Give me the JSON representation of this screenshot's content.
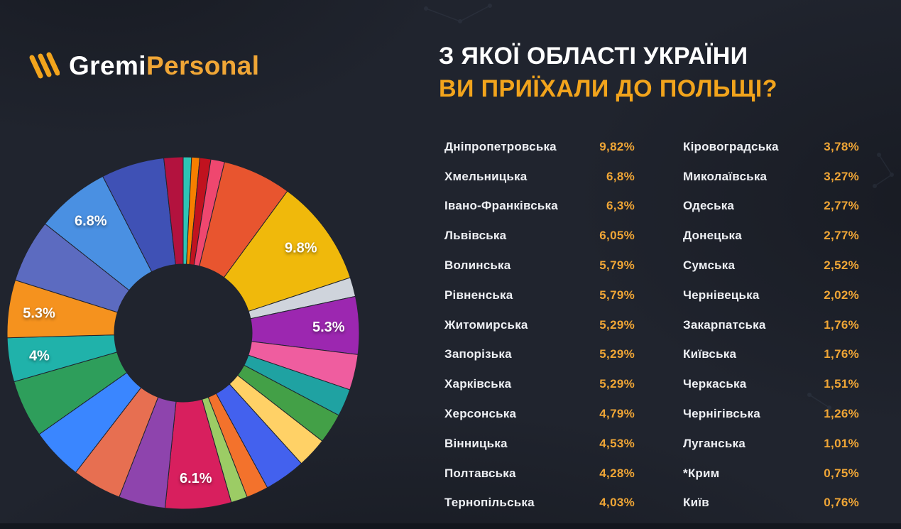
{
  "page": {
    "colors": {
      "background": "#20242e",
      "accent": "#F0A636",
      "accent_bright": "#F2A41C",
      "text": "#FFFFFF"
    }
  },
  "logo": {
    "text_white": "Gremi",
    "text_accent": "Personal"
  },
  "title": {
    "line1": "З ЯКОЇ ОБЛАСТІ УКРАЇНИ",
    "line2": "ВИ ПРИЇХАЛИ ДО ПОЛЬЩІ?"
  },
  "chart_data": {
    "type": "pie",
    "donut": true,
    "title": "З якої області України ви приїхали до Польщі?",
    "unit": "%",
    "legend_position": "right",
    "regions": [
      {
        "name": "Дніпропетровська",
        "value": 9.82,
        "display": "9,82%",
        "color": "#f0b90b",
        "chart_label": "9.8%"
      },
      {
        "name": "Хмельницька",
        "value": 6.8,
        "display": "6,8%",
        "color": "#4a90e2",
        "chart_label": "6.8%"
      },
      {
        "name": "Івано-Франківська",
        "value": 6.3,
        "display": "6,3%",
        "color": "#e8552f"
      },
      {
        "name": "Львівська",
        "value": 6.05,
        "display": "6,05%",
        "color": "#d81f5e",
        "chart_label": "6.1%"
      },
      {
        "name": "Волинська",
        "value": 5.79,
        "display": "5,79%",
        "color": "#3f51b5"
      },
      {
        "name": "Рівненська",
        "value": 5.79,
        "display": "5,79%",
        "color": "#5c6bc0"
      },
      {
        "name": "Житомирська",
        "value": 5.29,
        "display": "5,29%",
        "color": "#9c27b0",
        "chart_label": "5.3%"
      },
      {
        "name": "Запорізька",
        "value": 5.29,
        "display": "5,29%",
        "color": "#f5921e",
        "chart_label": "5.3%"
      },
      {
        "name": "Харківська",
        "value": 5.29,
        "display": "5,29%",
        "color": "#2e9e5b"
      },
      {
        "name": "Херсонська",
        "value": 4.79,
        "display": "4,79%",
        "color": "#3a86ff"
      },
      {
        "name": "Вінницька",
        "value": 4.53,
        "display": "4,53%",
        "color": "#e76f51"
      },
      {
        "name": "Полтавська",
        "value": 4.28,
        "display": "4,28%",
        "color": "#8e44ad"
      },
      {
        "name": "Тернопільська",
        "value": 4.03,
        "display": "4,03%",
        "color": "#20b2aa",
        "chart_label": "4%"
      },
      {
        "name": "Кіровоградська",
        "value": 3.78,
        "display": "3,78%",
        "color": "#4361ee"
      },
      {
        "name": "Миколаївська",
        "value": 3.27,
        "display": "3,27%",
        "color": "#ef5d9f"
      },
      {
        "name": "Одеська",
        "value": 2.77,
        "display": "2,77%",
        "color": "#ffd166"
      },
      {
        "name": "Донецька",
        "value": 2.77,
        "display": "2,77%",
        "color": "#43a047"
      },
      {
        "name": "Сумська",
        "value": 2.52,
        "display": "2,52%",
        "color": "#1fa2a2"
      },
      {
        "name": "Чернівецька",
        "value": 2.02,
        "display": "2,02%",
        "color": "#f3722c"
      },
      {
        "name": "Закарпатська",
        "value": 1.76,
        "display": "1,76%",
        "color": "#cfd4dc"
      },
      {
        "name": "Київська",
        "value": 1.76,
        "display": "1,76%",
        "color": "#b3123e"
      },
      {
        "name": "Черкаська",
        "value": 1.51,
        "display": "1,51%",
        "color": "#9ccc65"
      },
      {
        "name": "Чернігівська",
        "value": 1.26,
        "display": "1,26%",
        "color": "#ef476f"
      },
      {
        "name": "Луганська",
        "value": 1.01,
        "display": "1,01%",
        "color": "#c1121f"
      },
      {
        "name": "*Крим",
        "value": 0.75,
        "display": "0,75%",
        "color": "#f77f00"
      },
      {
        "name": "Київ",
        "value": 0.76,
        "display": "0,76%",
        "color": "#2ec4b6"
      }
    ],
    "donut_order": [
      "Київ",
      "*Крим",
      "Луганська",
      "Чернігівська",
      "Івано-Франківська",
      "Дніпропетровська",
      "Закарпатська",
      "Житомирська",
      "Миколаївська",
      "Сумська",
      "Донецька",
      "Одеська",
      "Кіровоградська",
      "Чернівецька",
      "Черкаська",
      "Львівська",
      "Полтавська",
      "Вінницька",
      "Херсонська",
      "Харківська",
      "Тернопільська",
      "Запорізька",
      "Рівненська",
      "Хмельницька",
      "Волинська",
      "Київська"
    ]
  }
}
